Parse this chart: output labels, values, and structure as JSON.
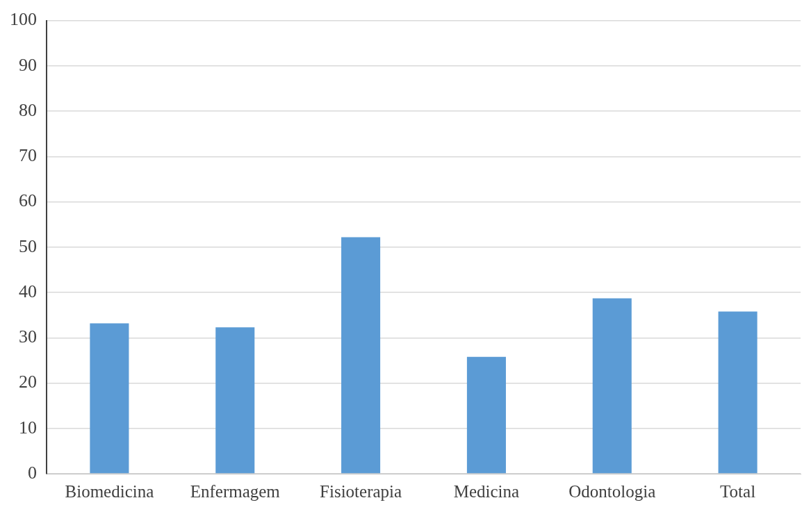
{
  "chart_data": {
    "type": "bar",
    "categories": [
      "Biomedicina",
      "Enfermagem",
      "Fisioterapia",
      "Medicina",
      "Odontologia",
      "Total"
    ],
    "values": [
      33.2,
      32.3,
      52.2,
      25.8,
      38.7,
      35.8
    ],
    "color": "#5b9bd5",
    "ylim": [
      0,
      100
    ],
    "yticks": [
      0,
      10,
      20,
      30,
      40,
      50,
      60,
      70,
      80,
      90,
      100
    ],
    "grid": "y"
  }
}
